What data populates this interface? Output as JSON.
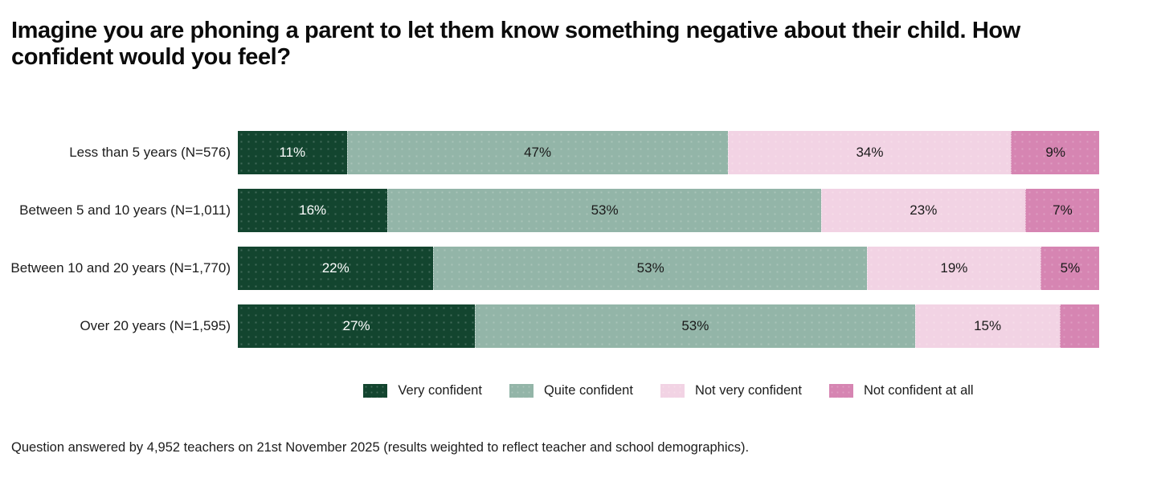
{
  "title": "Imagine you are phoning a parent to let them know something negative about their child. How confident would you feel?",
  "footer": "Question answered by 4,952 teachers on 21st November 2025 (results weighted to reflect teacher and school demographics).",
  "chart_data": {
    "type": "bar",
    "orientation": "horizontal",
    "stacked": true,
    "grid": false,
    "legend_position": "bottom",
    "xlim": [
      0,
      100
    ],
    "categories": [
      "Less than 5 years (N=576)",
      "Between 5 and 10 years (N=1,011)",
      "Between 10 and 20 years (N=1,770)",
      "Over 20 years (N=1,595)"
    ],
    "series": [
      {
        "name": "Very confident",
        "color": "#13452F",
        "label_color": "#FFFFFF",
        "values": [
          11,
          16,
          22,
          27
        ],
        "value_labels": [
          "11%",
          "16%",
          "22%",
          "27%"
        ]
      },
      {
        "name": "Quite confident",
        "color": "#93B5A8",
        "label_color": "#1A1A1A",
        "values": [
          47,
          53,
          53,
          53
        ],
        "value_labels": [
          "47%",
          "53%",
          "53%",
          "53%"
        ]
      },
      {
        "name": "Not very confident",
        "color": "#F2D3E4",
        "label_color": "#1A1A1A",
        "values": [
          34,
          23,
          19,
          15
        ],
        "value_labels": [
          "34%",
          "23%",
          "19%",
          "15%"
        ]
      },
      {
        "name": "Not confident at all",
        "color": "#D685B2",
        "label_color": "#1A1A1A",
        "values": [
          9,
          7,
          5,
          5
        ],
        "value_labels": [
          "9%",
          "7%",
          "5%",
          ""
        ]
      }
    ]
  }
}
